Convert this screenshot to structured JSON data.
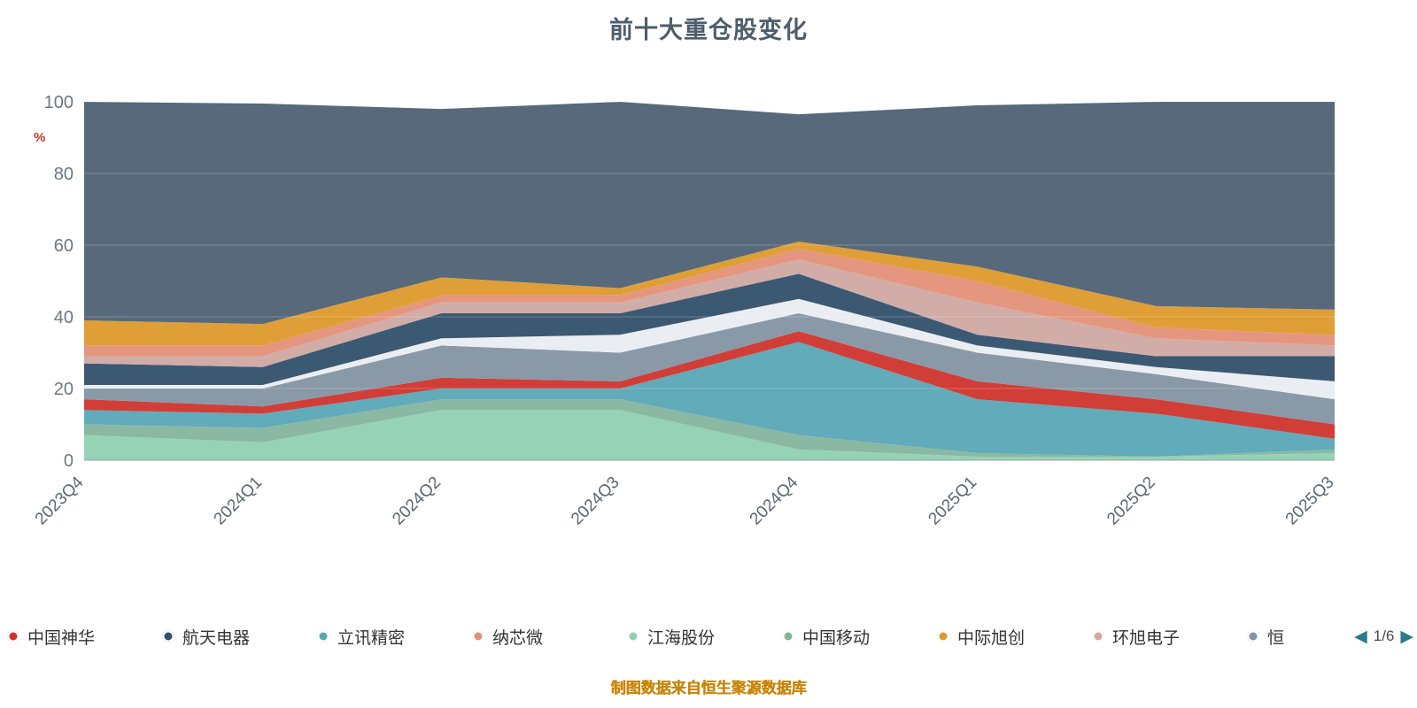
{
  "title": "前十大重仓股变化",
  "footer": "制图数据来自恒生聚源数据库",
  "axis": {
    "y_unit": "%",
    "y_ticks": [
      0,
      20,
      40,
      60,
      80,
      100
    ]
  },
  "legend": {
    "items": [
      {
        "label": "中国神华",
        "color": "#cf342c"
      },
      {
        "label": "航天电器",
        "color": "#31506b"
      },
      {
        "label": "立讯精密",
        "color": "#58a7b6"
      },
      {
        "label": "纳芯微",
        "color": "#e39177"
      },
      {
        "label": "江海股份",
        "color": "#8fd0b2"
      },
      {
        "label": "中国移动",
        "color": "#85b49e"
      },
      {
        "label": "中际旭创",
        "color": "#dd9a2b"
      },
      {
        "label": "环旭电子",
        "color": "#d0a8a2"
      },
      {
        "label": "恒",
        "color": "#8494a2"
      }
    ],
    "page": "1/6"
  },
  "chart_data": {
    "type": "area",
    "stacked": true,
    "title": "前十大重仓股变化",
    "xlabel": "",
    "ylabel": "%",
    "ylim": [
      0,
      100
    ],
    "grid": true,
    "legend_position": "bottom",
    "background_color": "#57697b",
    "categories": [
      "2023Q4",
      "2024Q1",
      "2024Q2",
      "2024Q3",
      "2024Q4",
      "2025Q1",
      "2025Q2",
      "2025Q3"
    ],
    "series": [
      {
        "name": "江海股份",
        "color": "#8fd0b2",
        "values": [
          7,
          5,
          14,
          14,
          3,
          1,
          1,
          2
        ]
      },
      {
        "name": "中国移动",
        "color": "#85b49e",
        "values": [
          3,
          4,
          3,
          3,
          4,
          1,
          0,
          1
        ]
      },
      {
        "name": "立讯精密",
        "color": "#58a7b6",
        "values": [
          4,
          4,
          3,
          3,
          26,
          15,
          12,
          3
        ]
      },
      {
        "name": "中国神华",
        "color": "#cf342c",
        "values": [
          3,
          2,
          3,
          2,
          3,
          5,
          4,
          4
        ]
      },
      {
        "name": "恒",
        "color": "#8494a2",
        "values": [
          3,
          5,
          9,
          8,
          5,
          8,
          7,
          7
        ]
      },
      {
        "name": "",
        "color": "#e9edf1",
        "values": [
          1,
          1,
          2,
          5,
          4,
          2,
          2,
          5
        ]
      },
      {
        "name": "航天电器",
        "color": "#31506b",
        "values": [
          6,
          5,
          7,
          6,
          7,
          3,
          3,
          7
        ]
      },
      {
        "name": "环旭电子",
        "color": "#d0a8a2",
        "values": [
          2,
          3,
          3,
          3,
          4,
          9,
          5,
          3
        ]
      },
      {
        "name": "纳芯微",
        "color": "#e39177",
        "values": [
          3,
          3,
          2,
          2,
          3,
          6,
          3,
          3
        ]
      },
      {
        "name": "中际旭创",
        "color": "#dd9a2b",
        "values": [
          7,
          6,
          5,
          2,
          2,
          4,
          6,
          7
        ]
      }
    ],
    "others_top": [
      100,
      99.5,
      98,
      100,
      96.5,
      99,
      100,
      100
    ]
  }
}
